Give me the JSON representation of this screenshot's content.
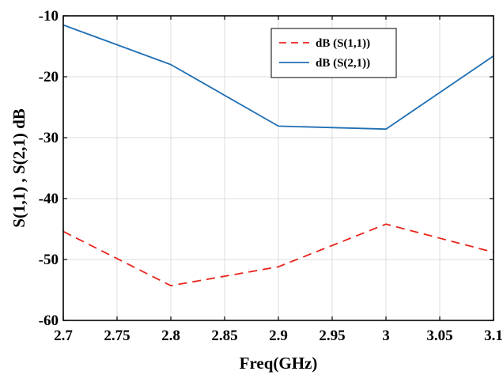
{
  "chart_data": {
    "type": "line",
    "title": "",
    "xlabel": "Freq(GHz)",
    "ylabel": "S(1,1) , S(2,1) dB",
    "xlim": [
      2.7,
      3.1
    ],
    "ylim": [
      -60,
      -10
    ],
    "xticks": [
      "2.7",
      "2.75",
      "2.8",
      "2.85",
      "2.9",
      "2.95",
      "3",
      "3.05",
      "3.1"
    ],
    "yticks": [
      "-60",
      "-50",
      "-40",
      "-30",
      "-20",
      "-10"
    ],
    "grid": true,
    "legend_position": "top-right",
    "x": [
      2.7,
      2.8,
      2.9,
      3.0,
      3.1
    ],
    "series": [
      {
        "name": "dB (S(1,1))",
        "color": "#e8251b",
        "style": "dashed",
        "values": [
          -45.4,
          -54.3,
          -51.2,
          -44.2,
          -48.8
        ]
      },
      {
        "name": "dB (S(2,1))",
        "color": "#1f6fb4",
        "style": "solid",
        "values": [
          -11.5,
          -18.0,
          -28.1,
          -28.6,
          -16.6
        ]
      }
    ]
  }
}
